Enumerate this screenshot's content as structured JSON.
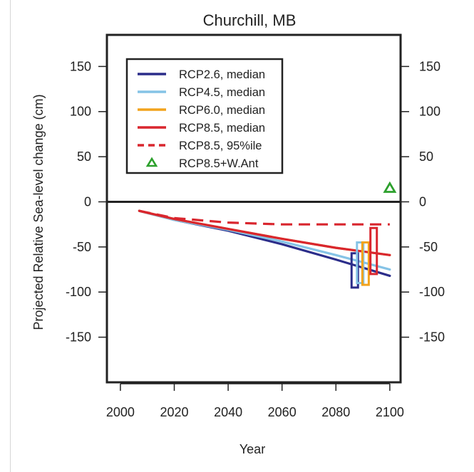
{
  "chart_data": {
    "type": "line",
    "title": "Churchill, MB",
    "xlabel": "Year",
    "ylabel": "Projected Relative Sea-level change (cm)",
    "xlim": [
      1995,
      2104
    ],
    "ylim": [
      -200,
      185
    ],
    "xticks": [
      2000,
      2020,
      2040,
      2060,
      2080,
      2100
    ],
    "yticks": [
      150,
      100,
      50,
      0,
      -50,
      -100,
      -150
    ],
    "xtick_labels": [
      "2000",
      "2020",
      "2040",
      "2060",
      "2080",
      "2100"
    ],
    "ytick_labels": [
      "150",
      "100",
      "50",
      "0",
      "-50",
      "-100",
      "-150"
    ],
    "zero_line": true,
    "grid": false,
    "legend_position": "top-left",
    "series": [
      {
        "name": "RCP2.6, median",
        "color": "#2b2d8a",
        "style": "solid",
        "x": [
          2007,
          2020,
          2040,
          2060,
          2080,
          2100
        ],
        "y": [
          -10,
          -20,
          -32,
          -47,
          -64,
          -82
        ]
      },
      {
        "name": "RCP4.5, median",
        "color": "#85c3e6",
        "style": "solid",
        "x": [
          2007,
          2020,
          2040,
          2060,
          2080,
          2100
        ],
        "y": [
          -10,
          -20,
          -31,
          -44,
          -59,
          -75
        ]
      },
      {
        "name": "RCP6.0, median",
        "color": "#f2a31c",
        "style": "solid",
        "x": [
          2007,
          2020,
          2040,
          2060,
          2080,
          2100
        ],
        "y": [
          -10,
          -19,
          -30,
          -41,
          -51,
          -59
        ]
      },
      {
        "name": "RCP8.5, median",
        "color": "#d9262e",
        "style": "solid",
        "x": [
          2007,
          2020,
          2040,
          2060,
          2080,
          2100
        ],
        "y": [
          -10,
          -19,
          -30,
          -41,
          -51,
          -59
        ]
      },
      {
        "name": "RCP8.5, 95%ile",
        "color": "#d9262e",
        "style": "dashed",
        "x": [
          2007,
          2020,
          2040,
          2060,
          2080,
          2100
        ],
        "y": [
          -10,
          -18,
          -23,
          -25,
          -25,
          -25
        ]
      }
    ],
    "markers": [
      {
        "name": "RCP8.5+W.Ant",
        "color": "#2ca02c",
        "shape": "triangle",
        "x": 2100,
        "y": 15
      }
    ],
    "ranges": [
      {
        "series": "RCP2.6, median",
        "color": "#2b2d8a",
        "x": 2087,
        "ymin": -95,
        "ymax": -57
      },
      {
        "series": "RCP4.5, median",
        "color": "#85c3e6",
        "x": 2089,
        "ymin": -90,
        "ymax": -45
      },
      {
        "series": "RCP6.0, median",
        "color": "#f2a31c",
        "x": 2091,
        "ymin": -92,
        "ymax": -45
      },
      {
        "series": "RCP8.5, median",
        "color": "#d9262e",
        "x": 2094,
        "ymin": -80,
        "ymax": -29
      }
    ]
  }
}
